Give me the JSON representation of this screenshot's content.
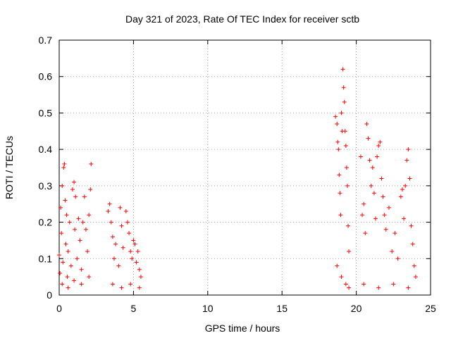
{
  "chart_data": {
    "type": "scatter",
    "title": "Day 321 of 2023, Rate Of TEC Index for receiver sctb",
    "xlabel": "GPS time / hours",
    "ylabel": "ROTI / TECUs",
    "xlim": [
      0,
      25
    ],
    "ylim": [
      0,
      0.7
    ],
    "xticks": [
      0,
      5,
      10,
      15,
      20,
      25
    ],
    "xtick_labels": [
      "0",
      "5",
      "10",
      "15",
      "20",
      "25"
    ],
    "yticks": [
      0,
      0.1,
      0.2,
      0.3,
      0.4,
      0.5,
      0.6,
      0.7
    ],
    "ytick_labels": [
      "0",
      "0.1",
      "0.2",
      "0.3",
      "0.4",
      "0.5",
      "0.6",
      "0.7"
    ],
    "grid": true,
    "marker": "plus",
    "color": "#ff0000",
    "series": [
      {
        "points": [
          [
            0.0,
            0.11
          ],
          [
            0.05,
            0.06
          ],
          [
            0.1,
            0.24
          ],
          [
            0.15,
            0.17
          ],
          [
            0.2,
            0.3
          ],
          [
            0.25,
            0.09
          ],
          [
            0.3,
            0.35
          ],
          [
            0.35,
            0.36
          ],
          [
            0.4,
            0.26
          ],
          [
            0.45,
            0.14
          ],
          [
            0.5,
            0.22
          ],
          [
            0.55,
            0.05
          ],
          [
            0.6,
            0.12
          ],
          [
            0.7,
            0.2
          ],
          [
            0.8,
            0.08
          ],
          [
            0.9,
            0.29
          ],
          [
            1.0,
            0.31
          ],
          [
            1.05,
            0.18
          ],
          [
            1.1,
            0.27
          ],
          [
            1.2,
            0.1
          ],
          [
            1.3,
            0.21
          ],
          [
            1.4,
            0.15
          ],
          [
            1.5,
            0.07
          ],
          [
            1.6,
            0.2
          ],
          [
            1.7,
            0.27
          ],
          [
            1.8,
            0.18
          ],
          [
            1.9,
            0.12
          ],
          [
            2.0,
            0.22
          ],
          [
            2.1,
            0.29
          ],
          [
            2.15,
            0.36
          ],
          [
            0.2,
            0.03
          ],
          [
            0.6,
            0.02
          ],
          [
            1.0,
            0.04
          ],
          [
            1.5,
            0.03
          ],
          [
            2.0,
            0.05
          ],
          [
            3.3,
            0.23
          ],
          [
            3.4,
            0.25
          ],
          [
            3.5,
            0.2
          ],
          [
            3.6,
            0.16
          ],
          [
            3.7,
            0.1
          ],
          [
            3.8,
            0.14
          ],
          [
            4.0,
            0.08
          ],
          [
            4.1,
            0.24
          ],
          [
            4.2,
            0.19
          ],
          [
            4.3,
            0.13
          ],
          [
            4.5,
            0.23
          ],
          [
            4.6,
            0.2
          ],
          [
            4.7,
            0.17
          ],
          [
            4.8,
            0.12
          ],
          [
            4.9,
            0.1
          ],
          [
            5.0,
            0.15
          ],
          [
            5.1,
            0.14
          ],
          [
            5.2,
            0.09
          ],
          [
            5.3,
            0.12
          ],
          [
            5.4,
            0.07
          ],
          [
            5.5,
            0.05
          ],
          [
            3.6,
            0.03
          ],
          [
            4.2,
            0.02
          ],
          [
            4.8,
            0.03
          ],
          [
            5.4,
            0.02
          ],
          [
            18.6,
            0.49
          ],
          [
            18.7,
            0.47
          ],
          [
            18.75,
            0.42
          ],
          [
            18.8,
            0.4
          ],
          [
            18.85,
            0.33
          ],
          [
            18.9,
            0.28
          ],
          [
            18.95,
            0.22
          ],
          [
            19.0,
            0.5
          ],
          [
            19.05,
            0.45
          ],
          [
            19.1,
            0.62
          ],
          [
            19.15,
            0.57
          ],
          [
            19.2,
            0.53
          ],
          [
            19.25,
            0.45
          ],
          [
            19.3,
            0.41
          ],
          [
            19.35,
            0.35
          ],
          [
            19.4,
            0.3
          ],
          [
            19.45,
            0.19
          ],
          [
            19.5,
            0.12
          ],
          [
            18.7,
            0.08
          ],
          [
            19.0,
            0.05
          ],
          [
            19.3,
            0.03
          ],
          [
            19.5,
            0.02
          ],
          [
            20.3,
            0.38
          ],
          [
            20.4,
            0.22
          ],
          [
            20.5,
            0.25
          ],
          [
            20.6,
            0.17
          ],
          [
            20.7,
            0.47
          ],
          [
            20.8,
            0.43
          ],
          [
            20.9,
            0.37
          ],
          [
            21.0,
            0.3
          ],
          [
            21.1,
            0.35
          ],
          [
            21.2,
            0.28
          ],
          [
            21.3,
            0.21
          ],
          [
            21.4,
            0.38
          ],
          [
            21.5,
            0.41
          ],
          [
            21.6,
            0.42
          ],
          [
            21.7,
            0.32
          ],
          [
            21.8,
            0.27
          ],
          [
            21.9,
            0.22
          ],
          [
            22.0,
            0.18
          ],
          [
            22.2,
            0.24
          ],
          [
            22.4,
            0.12
          ],
          [
            22.6,
            0.17
          ],
          [
            22.8,
            0.1
          ],
          [
            23.0,
            0.27
          ],
          [
            23.1,
            0.29
          ],
          [
            23.2,
            0.21
          ],
          [
            23.3,
            0.3
          ],
          [
            23.4,
            0.37
          ],
          [
            23.5,
            0.4
          ],
          [
            23.6,
            0.32
          ],
          [
            23.7,
            0.19
          ],
          [
            23.8,
            0.14
          ],
          [
            23.9,
            0.08
          ],
          [
            24.0,
            0.05
          ],
          [
            20.5,
            0.03
          ],
          [
            21.5,
            0.02
          ],
          [
            22.5,
            0.03
          ],
          [
            23.5,
            0.02
          ]
        ]
      }
    ]
  }
}
